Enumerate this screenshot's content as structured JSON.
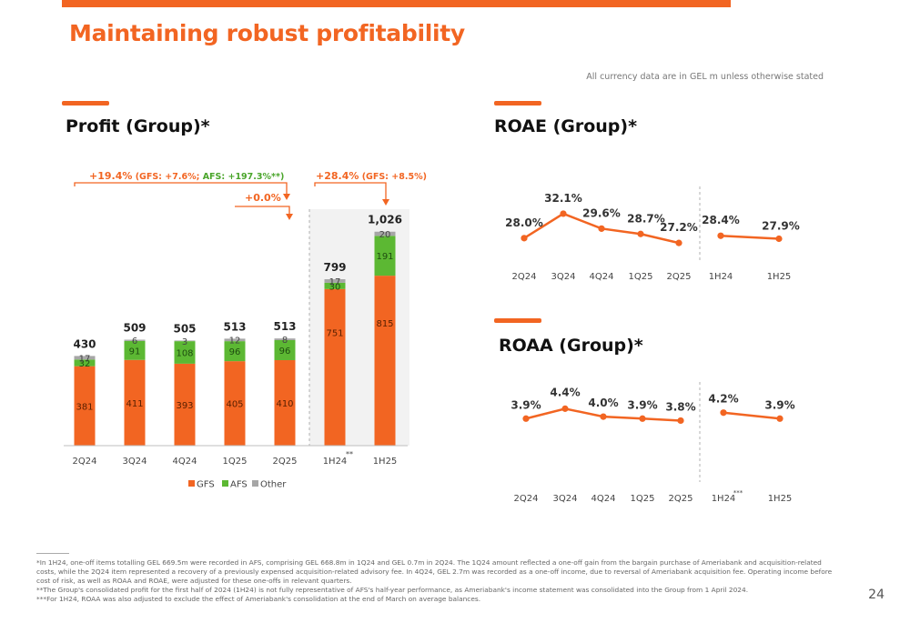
{
  "header": {
    "title": "Maintaining robust profitability",
    "currency_note": "All currency data are in GEL m unless otherwise stated"
  },
  "colors": {
    "gfs": "#f26522",
    "afs": "#5cb833",
    "other": "#a6a6a6",
    "accent": "#f26522"
  },
  "chart_data": [
    {
      "type": "bar",
      "title": "Profit (Group)*",
      "stacked": true,
      "categories": [
        "2Q24",
        "3Q24",
        "4Q24",
        "1Q25",
        "2Q25",
        "1H24",
        "1H25"
      ],
      "category_marks": [
        "",
        "",
        "",
        "",
        "",
        "**",
        ""
      ],
      "series": [
        {
          "name": "GFS",
          "values": [
            381,
            411,
            393,
            405,
            410,
            751,
            815
          ]
        },
        {
          "name": "AFS",
          "values": [
            32,
            91,
            108,
            96,
            96,
            30,
            191
          ]
        },
        {
          "name": "Other",
          "values": [
            17,
            6,
            3,
            12,
            8,
            17,
            20
          ]
        }
      ],
      "totals": [
        "430",
        "509",
        "505",
        "513",
        "513",
        "799",
        "1,026"
      ],
      "ylim": [
        0,
        1100
      ],
      "legend": "bottom",
      "annotations": [
        {
          "text": "+19.4%",
          "detail_gfs": " (GFS: +7.6%;",
          "detail_afs": " AFS: +197.3%**)",
          "detail_end": ""
        },
        {
          "text": "+0.0%"
        },
        {
          "text": "+28.4%",
          "detail_gfs": " (GFS: +8.5%)"
        }
      ]
    },
    {
      "type": "line",
      "title": "ROAE (Group)*",
      "categories": [
        "2Q24",
        "3Q24",
        "4Q24",
        "1Q25",
        "2Q25",
        "1H24",
        "1H25"
      ],
      "category_marks": [
        "",
        "",
        "",
        "",
        "",
        "",
        ""
      ],
      "values": [
        28.0,
        32.1,
        29.6,
        28.7,
        27.2,
        28.4,
        27.9
      ],
      "labels": [
        "28.0%",
        "32.1%",
        "29.6%",
        "28.7%",
        "27.2%",
        "28.4%",
        "27.9%"
      ],
      "ylim": [
        26,
        33
      ]
    },
    {
      "type": "line",
      "title": "ROAA (Group)*",
      "categories": [
        "2Q24",
        "3Q24",
        "4Q24",
        "1Q25",
        "2Q25",
        "1H24",
        "1H25"
      ],
      "category_marks": [
        "",
        "",
        "",
        "",
        "",
        "***",
        ""
      ],
      "values": [
        3.9,
        4.4,
        4.0,
        3.9,
        3.8,
        4.2,
        3.9
      ],
      "labels": [
        "3.9%",
        "4.4%",
        "4.0%",
        "3.9%",
        "3.8%",
        "4.2%",
        "3.9%"
      ],
      "ylim": [
        3.5,
        4.6
      ]
    }
  ],
  "footnotes": [
    "*In 1H24, one-off items totalling GEL 669.5m were recorded in AFS, comprising GEL 668.8m in 1Q24 and GEL 0.7m in 2Q24. The 1Q24 amount reflected a one-off gain from the bargain purchase of Ameriabank and acquisition-related costs, while the 2Q24 item represented a recovery of a previously expensed acquisition-related advisory fee. In 4Q24, GEL 2.7m was recorded as a one-off income, due to reversal of Ameriabank acquisition fee. Operating income before cost of risk, as well as ROAA and ROAE, were adjusted for these one-offs in relevant quarters.",
    "**The Group's consolidated profit for the first half of 2024 (1H24) is not fully representative of AFS's half-year performance, as Ameriabank's income statement was consolidated into the Group from 1 April 2024.",
    "***For 1H24, ROAA was also adjusted to exclude the effect of Ameriabank's consolidation at the end of March on average balances."
  ],
  "page_number": "24"
}
